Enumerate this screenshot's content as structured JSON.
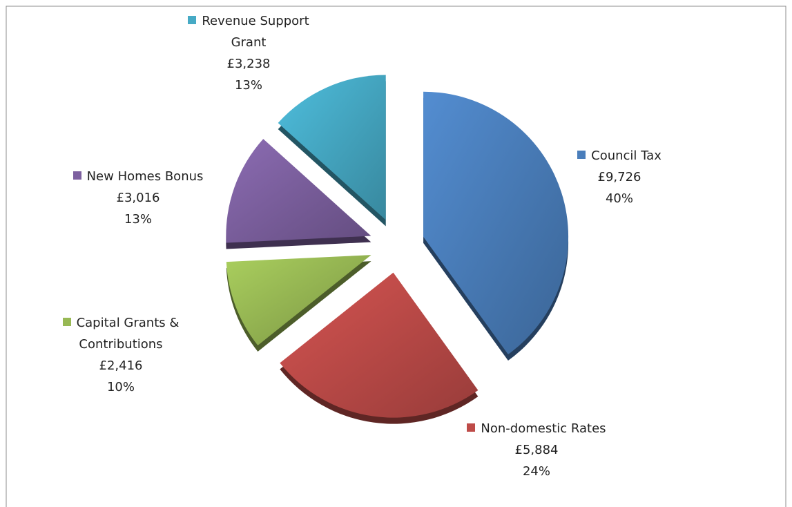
{
  "chart_data": {
    "type": "pie",
    "categories": [
      "Council Tax",
      "Non-domestic Rates",
      "Capital Grants & Contributions",
      "New Homes Bonus",
      "Revenue Support Grant"
    ],
    "values": [
      9726,
      5884,
      2416,
      3016,
      3238
    ],
    "value_labels": [
      "£9,726",
      "£5,884",
      "£2,416",
      "£3,016",
      "£3,238"
    ],
    "percent_labels": [
      "40%",
      "24%",
      "10%",
      "13%",
      "13%"
    ],
    "colors": [
      "#4a7ebb",
      "#be4b48",
      "#98b954",
      "#7d60a0",
      "#46aac5"
    ],
    "start_angle": 0,
    "direction": "clockwise",
    "exploded": true
  }
}
